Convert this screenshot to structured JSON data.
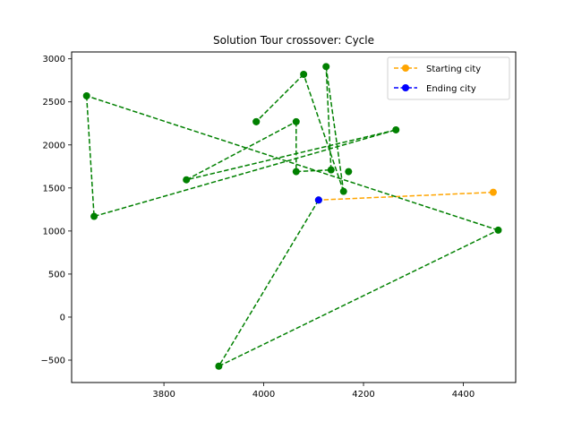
{
  "chart_data": {
    "type": "line",
    "title": "Solution Tour crossover: Cycle",
    "xlabel": "",
    "ylabel": "",
    "xlim": [
      3615,
      4505
    ],
    "ylim": [
      -760,
      3080
    ],
    "xticks": [
      3800,
      4000,
      4200,
      4400
    ],
    "yticks": [
      -500,
      0,
      500,
      1000,
      1500,
      2000,
      2500,
      3000
    ],
    "grid": false,
    "legend_position": "top-right",
    "tour": [
      [
        4460,
        1450
      ],
      [
        4110,
        1360
      ],
      [
        3910,
        -570
      ],
      [
        4470,
        1010
      ],
      [
        3645,
        2570
      ],
      [
        3660,
        1170
      ],
      [
        4265,
        2175
      ],
      [
        3845,
        1595
      ],
      [
        4065,
        2270
      ],
      [
        4065,
        1690
      ],
      [
        4135,
        1710
      ],
      [
        4125,
        2910
      ],
      [
        4160,
        1460
      ],
      [
        4080,
        2820
      ],
      [
        3985,
        2270
      ],
      [
        3985,
        2270
      ]
    ],
    "tour_color": "#008000",
    "start_segment": {
      "name": "Starting city",
      "points": [
        [
          4460,
          1450
        ],
        [
          4110,
          1360
        ]
      ],
      "color": "#ffa500"
    },
    "end_marker": {
      "name": "Ending city",
      "point": [
        4110,
        1360
      ],
      "color": "#0000ff"
    },
    "extra_tour_point": [
      4170,
      1690
    ]
  }
}
